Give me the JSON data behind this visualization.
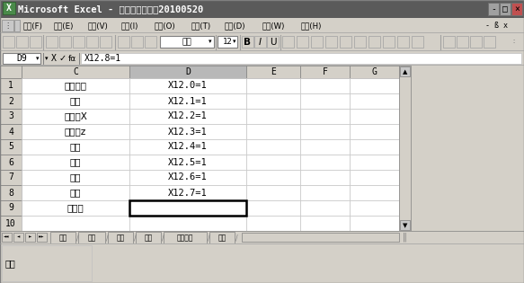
{
  "title_bar_text": "Microsoft Excel - 机床设置信息表20100520",
  "menu_items": [
    "文件(F)",
    "编辑(E)",
    "视图(V)",
    "插入(I)",
    "格式(O)",
    "工具(T)",
    "数据(D)",
    "窗口(W)",
    "帮助(H)"
  ],
  "formula_bar_cell": "D9",
  "formula_bar_value": "X12.8=1",
  "font_name": "宋体",
  "font_size": "12",
  "col_headers": [
    "C",
    "D",
    "E",
    "F",
    "G"
  ],
  "col_c_data": [
    "数控装置",
    "主轴",
    "进给轴X",
    "进给轴z",
    "刀架",
    "冷却",
    "排屑",
    "照明",
    "电气柜",
    ""
  ],
  "col_d_data": [
    "X12.0=1",
    "X12.1=1",
    "X12.2=1",
    "X12.3=1",
    "X12.4=1",
    "X12.5=1",
    "X12.6=1",
    "X12.7=1",
    "X12.8=1",
    ""
  ],
  "selected_cell_row": 9,
  "tab_labels": [
    "车床",
    "銃床",
    "磨床",
    "冲床",
    "加工中心",
    "其他"
  ],
  "status_bar_text": "编辑",
  "title_bg": "#606060",
  "win_bg": "#d4d0c8",
  "cell_bg": "#ffffff",
  "grid_color": "#c0c0c0",
  "header_bg": "#d4d0c8",
  "selected_col_bg": "#b8b8b8",
  "formula_bar_value_full": "X12. 8=1"
}
